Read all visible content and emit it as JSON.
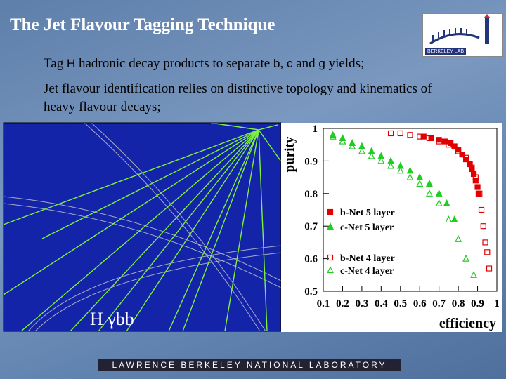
{
  "slide": {
    "title": "The Jet Flavour Tagging Technique",
    "logo_text": "BERKELEY LAB",
    "bullets": [
      [
        "Tag ",
        "H",
        " hadronic decay products to separate ",
        "b",
        ", ",
        "c",
        " and ",
        "g",
        " yields;"
      ],
      "Jet flavour identification relies on distinctive topology and kinematics of heavy flavour decays;"
    ],
    "event_label": "H γbb",
    "footer": "LAWRENCE BERKELEY NATIONAL LABORATORY"
  },
  "chart_data": {
    "type": "scatter",
    "xlabel": "efficiency",
    "ylabel": "purity",
    "xlim": [
      0.1,
      1
    ],
    "ylim": [
      0.5,
      1
    ],
    "xticks": [
      0.1,
      0.2,
      0.3,
      0.4,
      0.5,
      0.6,
      0.7,
      0.8,
      0.9,
      1
    ],
    "yticks": [
      0.5,
      0.6,
      0.7,
      0.8,
      0.9,
      1
    ],
    "series": [
      {
        "name": "b-Net 5 layer",
        "color": "#e00000",
        "marker": "square",
        "filled": true,
        "x": [
          0.62,
          0.66,
          0.7,
          0.73,
          0.76,
          0.78,
          0.8,
          0.82,
          0.84,
          0.86,
          0.87,
          0.88,
          0.89,
          0.9,
          0.905
        ],
        "y": [
          0.975,
          0.97,
          0.965,
          0.96,
          0.955,
          0.945,
          0.935,
          0.92,
          0.905,
          0.89,
          0.875,
          0.86,
          0.84,
          0.82,
          0.8
        ]
      },
      {
        "name": "c-Net 5 layer",
        "color": "#22cc22",
        "marker": "triangle",
        "filled": true,
        "x": [
          0.15,
          0.2,
          0.25,
          0.3,
          0.35,
          0.4,
          0.45,
          0.5,
          0.55,
          0.6,
          0.65,
          0.7,
          0.74,
          0.78
        ],
        "y": [
          0.98,
          0.97,
          0.955,
          0.945,
          0.93,
          0.915,
          0.9,
          0.885,
          0.87,
          0.85,
          0.83,
          0.8,
          0.77,
          0.72
        ]
      },
      {
        "name": "b-Net 4 layer",
        "color": "#e00000",
        "marker": "square",
        "filled": false,
        "x": [
          0.45,
          0.5,
          0.55,
          0.6,
          0.65,
          0.7,
          0.75,
          0.8,
          0.84,
          0.87,
          0.89,
          0.91,
          0.92,
          0.93,
          0.94,
          0.95,
          0.96
        ],
        "y": [
          0.985,
          0.985,
          0.98,
          0.975,
          0.97,
          0.96,
          0.95,
          0.93,
          0.91,
          0.88,
          0.85,
          0.8,
          0.75,
          0.7,
          0.65,
          0.62,
          0.57
        ]
      },
      {
        "name": "c-Net 4 layer",
        "color": "#22cc22",
        "marker": "triangle",
        "filled": false,
        "x": [
          0.15,
          0.2,
          0.25,
          0.3,
          0.35,
          0.4,
          0.45,
          0.5,
          0.55,
          0.6,
          0.65,
          0.7,
          0.75,
          0.8,
          0.84,
          0.88
        ],
        "y": [
          0.975,
          0.96,
          0.945,
          0.93,
          0.915,
          0.9,
          0.885,
          0.87,
          0.85,
          0.83,
          0.8,
          0.77,
          0.72,
          0.66,
          0.6,
          0.55
        ]
      }
    ]
  }
}
